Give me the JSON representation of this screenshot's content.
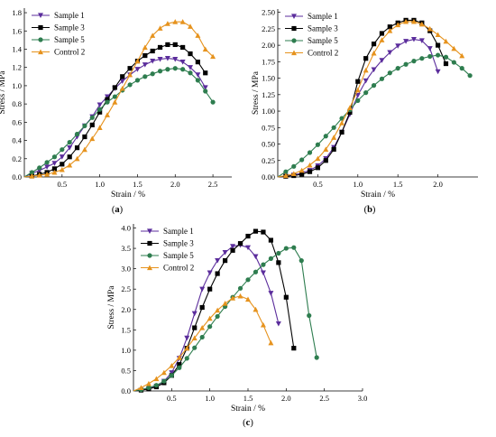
{
  "chart_data": [
    {
      "id": "a",
      "type": "line",
      "panel_label": "(a)",
      "xlabel": "Strain / %",
      "ylabel": "Stress / MPa",
      "xlim": [
        0,
        2.75
      ],
      "ylim": [
        0,
        1.85
      ],
      "xticks": [
        0.5,
        1.0,
        1.5,
        2.0,
        2.5
      ],
      "yticks": [
        0.0,
        0.2,
        0.4,
        0.6,
        0.8,
        1.0,
        1.2,
        1.4,
        1.6,
        1.8
      ],
      "tick_decimals": 1,
      "legend_position": "top-left",
      "series": [
        {
          "name": "Sample 1",
          "color": "#5b2d9c",
          "marker": "triangle-down",
          "x": [
            0.0,
            0.1,
            0.2,
            0.3,
            0.4,
            0.5,
            0.6,
            0.7,
            0.8,
            0.9,
            1.0,
            1.1,
            1.2,
            1.3,
            1.4,
            1.5,
            1.6,
            1.7,
            1.8,
            1.9,
            2.0,
            2.1,
            2.2,
            2.3,
            2.4
          ],
          "y": [
            0.0,
            0.04,
            0.07,
            0.11,
            0.15,
            0.22,
            0.32,
            0.44,
            0.56,
            0.66,
            0.79,
            0.88,
            0.97,
            1.05,
            1.12,
            1.18,
            1.23,
            1.27,
            1.29,
            1.3,
            1.29,
            1.26,
            1.2,
            1.12,
            0.98
          ]
        },
        {
          "name": "Sample 3",
          "color": "#000000",
          "marker": "square",
          "x": [
            0.0,
            0.1,
            0.2,
            0.3,
            0.4,
            0.5,
            0.6,
            0.7,
            0.8,
            0.9,
            1.0,
            1.1,
            1.2,
            1.3,
            1.4,
            1.5,
            1.6,
            1.7,
            1.8,
            1.9,
            2.0,
            2.1,
            2.2,
            2.3,
            2.4
          ],
          "y": [
            0.0,
            0.01,
            0.03,
            0.05,
            0.09,
            0.14,
            0.22,
            0.32,
            0.44,
            0.57,
            0.71,
            0.85,
            0.98,
            1.1,
            1.19,
            1.27,
            1.33,
            1.38,
            1.42,
            1.45,
            1.45,
            1.42,
            1.35,
            1.26,
            1.14
          ]
        },
        {
          "name": "Sample 5",
          "color": "#2e7d4f",
          "marker": "circle",
          "x": [
            0.0,
            0.1,
            0.2,
            0.3,
            0.4,
            0.5,
            0.6,
            0.7,
            0.8,
            0.9,
            1.0,
            1.1,
            1.2,
            1.3,
            1.4,
            1.5,
            1.6,
            1.7,
            1.8,
            1.9,
            2.0,
            2.1,
            2.2,
            2.3,
            2.4,
            2.5
          ],
          "y": [
            0.0,
            0.05,
            0.1,
            0.16,
            0.22,
            0.3,
            0.38,
            0.47,
            0.56,
            0.65,
            0.74,
            0.82,
            0.88,
            0.95,
            1.01,
            1.06,
            1.1,
            1.13,
            1.16,
            1.18,
            1.19,
            1.18,
            1.14,
            1.06,
            0.94,
            0.82
          ]
        },
        {
          "name": "Control 2",
          "color": "#e6931e",
          "marker": "triangle-up",
          "x": [
            0.0,
            0.1,
            0.2,
            0.3,
            0.4,
            0.5,
            0.6,
            0.7,
            0.8,
            0.9,
            1.0,
            1.1,
            1.2,
            1.3,
            1.4,
            1.5,
            1.6,
            1.7,
            1.8,
            1.9,
            2.0,
            2.1,
            2.2,
            2.3,
            2.4,
            2.5
          ],
          "y": [
            0.0,
            0.01,
            0.02,
            0.03,
            0.05,
            0.08,
            0.13,
            0.2,
            0.3,
            0.42,
            0.54,
            0.68,
            0.82,
            0.97,
            1.12,
            1.27,
            1.42,
            1.55,
            1.63,
            1.68,
            1.7,
            1.7,
            1.65,
            1.55,
            1.4,
            1.32
          ]
        }
      ]
    },
    {
      "id": "b",
      "type": "line",
      "panel_label": "(b)",
      "xlabel": "Strain / %",
      "ylabel": "Stress / MPa",
      "xlim": [
        0,
        2.5
      ],
      "ylim": [
        0,
        2.55
      ],
      "xticks": [
        0.5,
        1.0,
        1.5,
        2.0
      ],
      "yticks": [
        0.0,
        0.25,
        0.5,
        0.75,
        1.0,
        1.25,
        1.5,
        1.75,
        2.0,
        2.25,
        2.5
      ],
      "tick_decimals": 2,
      "legend_position": "top-left",
      "series": [
        {
          "name": "Sample 1",
          "color": "#5b2d9c",
          "marker": "triangle-down",
          "x": [
            0.0,
            0.1,
            0.2,
            0.3,
            0.4,
            0.5,
            0.6,
            0.7,
            0.8,
            0.9,
            1.0,
            1.1,
            1.2,
            1.3,
            1.4,
            1.5,
            1.6,
            1.7,
            1.8,
            1.9,
            2.0
          ],
          "y": [
            0.0,
            0.01,
            0.03,
            0.06,
            0.1,
            0.17,
            0.28,
            0.45,
            0.68,
            0.95,
            1.24,
            1.46,
            1.63,
            1.77,
            1.89,
            1.99,
            2.06,
            2.09,
            2.07,
            1.95,
            1.6
          ]
        },
        {
          "name": "Sample 3",
          "color": "#000000",
          "marker": "square",
          "x": [
            0.0,
            0.1,
            0.2,
            0.3,
            0.4,
            0.5,
            0.6,
            0.7,
            0.8,
            0.9,
            1.0,
            1.1,
            1.2,
            1.3,
            1.4,
            1.5,
            1.6,
            1.7,
            1.8,
            1.9,
            2.0,
            2.1
          ],
          "y": [
            0.0,
            0.01,
            0.02,
            0.04,
            0.08,
            0.14,
            0.25,
            0.42,
            0.68,
            0.98,
            1.45,
            1.8,
            2.02,
            2.18,
            2.28,
            2.34,
            2.38,
            2.38,
            2.34,
            2.22,
            2.0,
            1.72
          ]
        },
        {
          "name": "Sample 5",
          "color": "#2e7d4f",
          "marker": "circle",
          "x": [
            0.0,
            0.1,
            0.2,
            0.3,
            0.4,
            0.5,
            0.6,
            0.7,
            0.8,
            0.9,
            1.0,
            1.1,
            1.2,
            1.3,
            1.4,
            1.5,
            1.6,
            1.7,
            1.8,
            1.9,
            2.0,
            2.1,
            2.2,
            2.3,
            2.4
          ],
          "y": [
            0.0,
            0.08,
            0.16,
            0.26,
            0.37,
            0.49,
            0.62,
            0.75,
            0.89,
            1.02,
            1.16,
            1.28,
            1.39,
            1.49,
            1.58,
            1.65,
            1.71,
            1.76,
            1.8,
            1.83,
            1.85,
            1.82,
            1.74,
            1.65,
            1.54
          ]
        },
        {
          "name": "Control 2",
          "color": "#e6931e",
          "marker": "triangle-up",
          "x": [
            0.0,
            0.1,
            0.2,
            0.3,
            0.4,
            0.5,
            0.6,
            0.7,
            0.8,
            0.9,
            1.0,
            1.1,
            1.2,
            1.3,
            1.4,
            1.5,
            1.6,
            1.7,
            1.8,
            1.9,
            2.0,
            2.1,
            2.2,
            2.3
          ],
          "y": [
            0.0,
            0.02,
            0.05,
            0.1,
            0.18,
            0.28,
            0.42,
            0.6,
            0.82,
            1.05,
            1.32,
            1.62,
            1.88,
            2.08,
            2.22,
            2.31,
            2.36,
            2.36,
            2.32,
            2.25,
            2.16,
            2.06,
            1.95,
            1.84
          ]
        }
      ]
    },
    {
      "id": "c",
      "type": "line",
      "panel_label": "(c)",
      "xlabel": "Strain / %",
      "ylabel": "Stress / MPa",
      "xlim": [
        0,
        3.0
      ],
      "ylim": [
        0,
        4.1
      ],
      "xticks": [
        0.5,
        1.0,
        1.5,
        2.0,
        2.5,
        3.0
      ],
      "yticks": [
        0.0,
        0.5,
        1.0,
        1.5,
        2.0,
        2.5,
        3.0,
        3.5,
        4.0
      ],
      "tick_decimals": 1,
      "legend_position": "top-left",
      "series": [
        {
          "name": "Sample 1",
          "color": "#5b2d9c",
          "marker": "triangle-down",
          "x": [
            0.0,
            0.1,
            0.2,
            0.3,
            0.4,
            0.5,
            0.6,
            0.7,
            0.8,
            0.9,
            1.0,
            1.1,
            1.2,
            1.3,
            1.4,
            1.5,
            1.6,
            1.7,
            1.8,
            1.9
          ],
          "y": [
            0.0,
            0.02,
            0.05,
            0.12,
            0.24,
            0.45,
            0.8,
            1.3,
            1.9,
            2.5,
            2.9,
            3.2,
            3.4,
            3.55,
            3.58,
            3.52,
            3.3,
            2.9,
            2.4,
            1.65
          ]
        },
        {
          "name": "Sample 3",
          "color": "#000000",
          "marker": "square",
          "x": [
            0.0,
            0.1,
            0.2,
            0.3,
            0.4,
            0.5,
            0.6,
            0.7,
            0.8,
            0.9,
            1.0,
            1.1,
            1.2,
            1.3,
            1.4,
            1.5,
            1.6,
            1.7,
            1.8,
            1.9,
            2.0,
            2.1
          ],
          "y": [
            0.0,
            0.02,
            0.05,
            0.1,
            0.2,
            0.38,
            0.65,
            1.05,
            1.55,
            2.05,
            2.5,
            2.88,
            3.2,
            3.45,
            3.62,
            3.8,
            3.92,
            3.9,
            3.7,
            3.15,
            2.3,
            1.05
          ]
        },
        {
          "name": "Sample 5",
          "color": "#2e7d4f",
          "marker": "circle",
          "x": [
            0.0,
            0.1,
            0.2,
            0.3,
            0.4,
            0.5,
            0.6,
            0.7,
            0.8,
            0.9,
            1.0,
            1.1,
            1.2,
            1.3,
            1.4,
            1.5,
            1.6,
            1.7,
            1.8,
            1.9,
            2.0,
            2.1,
            2.2,
            2.3,
            2.4
          ],
          "y": [
            0.0,
            0.03,
            0.08,
            0.14,
            0.24,
            0.38,
            0.57,
            0.8,
            1.06,
            1.32,
            1.58,
            1.83,
            2.07,
            2.3,
            2.52,
            2.73,
            2.92,
            3.1,
            3.25,
            3.38,
            3.5,
            3.52,
            3.2,
            1.85,
            0.82
          ]
        },
        {
          "name": "Control 2",
          "color": "#e6931e",
          "marker": "triangle-up",
          "x": [
            0.0,
            0.1,
            0.2,
            0.3,
            0.4,
            0.5,
            0.6,
            0.7,
            0.8,
            0.9,
            1.0,
            1.1,
            1.2,
            1.3,
            1.4,
            1.5,
            1.6,
            1.7,
            1.8
          ],
          "y": [
            0.0,
            0.08,
            0.18,
            0.3,
            0.45,
            0.62,
            0.82,
            1.05,
            1.3,
            1.55,
            1.78,
            1.98,
            2.15,
            2.28,
            2.33,
            2.25,
            2.0,
            1.62,
            1.18
          ]
        }
      ]
    }
  ]
}
